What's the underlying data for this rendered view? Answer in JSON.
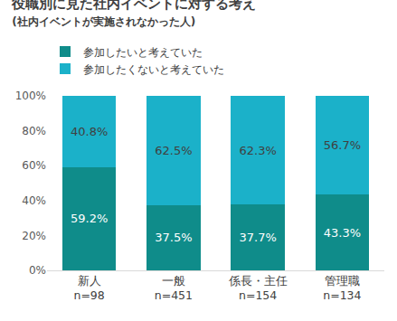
{
  "chart_data": {
    "type": "bar",
    "title": "役職別に見た社内イベントに対する考え",
    "subtitle": "(社内イベントが実施されなかった人)",
    "categories": [
      "新人\nn=98",
      "一般\nn=451",
      "係長・主任\nn=154",
      "管理職\nn=134"
    ],
    "series": [
      {
        "name": "参加したいと考えていた",
        "color": "#0f8c8a",
        "values": [
          59.2,
          37.5,
          37.7,
          43.3
        ],
        "value_labels": [
          "59.2%",
          "37.5%",
          "37.7%",
          "43.3%"
        ]
      },
      {
        "name": "参加したくないと考えていた",
        "color": "#1bb1c9",
        "values": [
          40.8,
          62.5,
          62.3,
          56.7
        ],
        "value_labels": [
          "40.8%",
          "62.5%",
          "62.3%",
          "56.7%"
        ]
      }
    ],
    "stacked": true,
    "data_labels": true,
    "legend": "top left",
    "grid": false,
    "ylim": [
      0,
      100
    ],
    "yticks": [
      {
        "value": 0,
        "label": "0%"
      },
      {
        "value": 20,
        "label": "20%"
      },
      {
        "value": 40,
        "label": "40%"
      },
      {
        "value": 60,
        "label": "60%"
      },
      {
        "value": 80,
        "label": "80%"
      },
      {
        "value": 100,
        "label": "100%"
      }
    ]
  }
}
